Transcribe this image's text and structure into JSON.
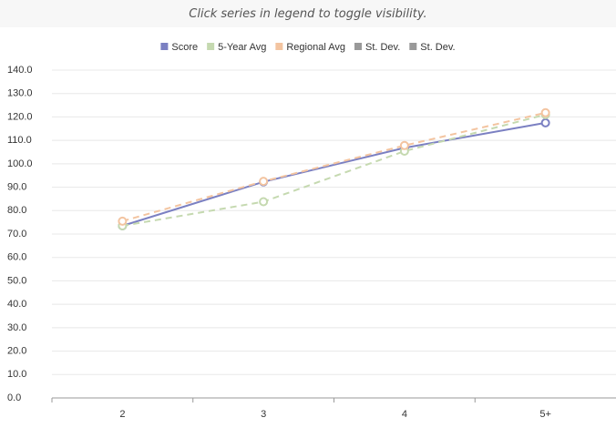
{
  "note": "Click series in legend to toggle visibility.",
  "chart_data": {
    "type": "line",
    "categories": [
      "2",
      "3",
      "4",
      "5+"
    ],
    "series": [
      {
        "name": "Score",
        "color": "#7b80c2",
        "dashed": false,
        "values": [
          73.5,
          92.3,
          106.8,
          117.5
        ]
      },
      {
        "name": "5-Year Avg",
        "color": "#c5d9b0",
        "dashed": true,
        "values": [
          73.5,
          83.8,
          105.4,
          121
        ]
      },
      {
        "name": "Regional Avg",
        "color": "#f3c4a0",
        "dashed": true,
        "values": [
          75.5,
          92.5,
          107.8,
          121.8
        ]
      },
      {
        "name": "St. Dev.",
        "color": "#999999",
        "dashed": false,
        "values": [
          null,
          null,
          null,
          null
        ]
      },
      {
        "name": "St. Dev.",
        "color": "#999999",
        "dashed": false,
        "values": [
          null,
          null,
          null,
          null
        ]
      }
    ],
    "ylim": [
      0,
      140
    ],
    "yticks": [
      {
        "value": 0,
        "label": "0.0"
      },
      {
        "value": 10,
        "label": "10.0"
      },
      {
        "value": 20,
        "label": "20.0"
      },
      {
        "value": 30,
        "label": "30.0"
      },
      {
        "value": 40,
        "label": "40.0"
      },
      {
        "value": 50,
        "label": "50.0"
      },
      {
        "value": 60,
        "label": "60.0"
      },
      {
        "value": 70,
        "label": "70.0"
      },
      {
        "value": 80,
        "label": "80.0"
      },
      {
        "value": 90,
        "label": "90.0"
      },
      {
        "value": 100,
        "label": "100.0"
      },
      {
        "value": 110,
        "label": "110.0"
      },
      {
        "value": 120,
        "label": "120.0"
      },
      {
        "value": 130,
        "label": "130.0"
      },
      {
        "value": 140,
        "label": "140.0"
      }
    ],
    "grid": true
  }
}
